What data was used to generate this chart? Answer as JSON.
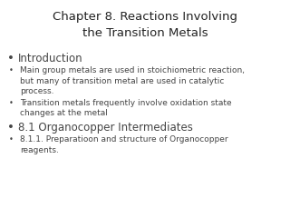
{
  "title_line1": "Chapter 8. Reactions Involving",
  "title_line2": "the Transition Metals",
  "title_fontsize": 9.5,
  "title_color": "#222222",
  "background_color": "#ffffff",
  "bullet_items": [
    {
      "text": "Introduction",
      "level": 1,
      "fontsize": 8.5,
      "bold": false
    },
    {
      "text": "Main group metals are used in stoichiometric reaction,\nbut many of transition metal are used in catalytic\nprocess.",
      "level": 2,
      "fontsize": 6.5,
      "bold": false
    },
    {
      "text": "Transition metals frequently involve oxidation state\nchanges at the metal",
      "level": 2,
      "fontsize": 6.5,
      "bold": false
    },
    {
      "text": "8.1 Organocopper Intermediates",
      "level": 1,
      "fontsize": 8.5,
      "bold": false
    },
    {
      "text": "8.1.1. Preparatioon and structure of Organocopper\nreagents.",
      "level": 2,
      "fontsize": 6.5,
      "bold": false
    }
  ],
  "text_color": "#444444",
  "title_font": "DejaVu Sans",
  "body_font": "DejaVu Sans"
}
